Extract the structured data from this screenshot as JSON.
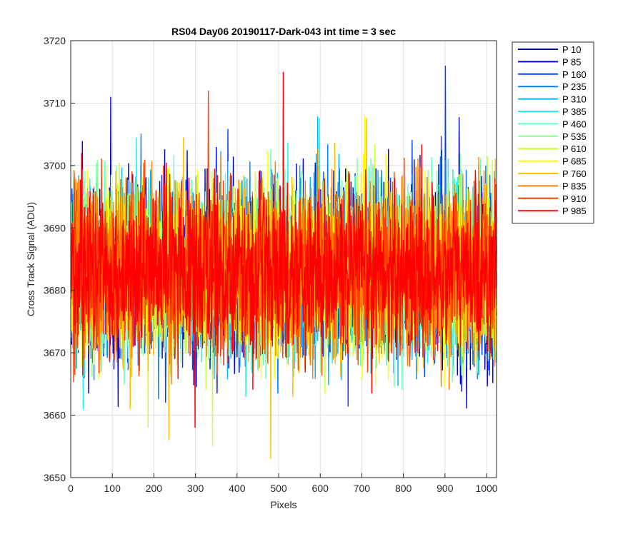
{
  "chart_data": {
    "type": "line",
    "title": "RS04 Day06 20190117-Dark-043 int time = 3 sec",
    "xlabel": "Pixels",
    "ylabel": "Cross Track Signal (ADU)",
    "xlim": [
      0,
      1024
    ],
    "ylim": [
      3650,
      3720
    ],
    "xticks": [
      0,
      100,
      200,
      300,
      400,
      500,
      600,
      700,
      800,
      900,
      1000
    ],
    "yticks": [
      3650,
      3660,
      3670,
      3680,
      3690,
      3700,
      3710,
      3720
    ],
    "grid": true,
    "legend_position": "outside-top-right",
    "noise_mean": 3683,
    "noise_sigma": 6.5,
    "series": [
      {
        "name": "P 10",
        "color": "#0000aa"
      },
      {
        "name": "P 85",
        "color": "#0000ee"
      },
      {
        "name": "P 160",
        "color": "#0040ff"
      },
      {
        "name": "P 235",
        "color": "#0080ff"
      },
      {
        "name": "P 310",
        "color": "#00b8ff"
      },
      {
        "name": "P 385",
        "color": "#20f0f0"
      },
      {
        "name": "P 460",
        "color": "#60ffc0"
      },
      {
        "name": "P 535",
        "color": "#90ff90"
      },
      {
        "name": "P 610",
        "color": "#c8ff38"
      },
      {
        "name": "P 685",
        "color": "#ffff00"
      },
      {
        "name": "P 760",
        "color": "#ffc000"
      },
      {
        "name": "P 835",
        "color": "#ff8000"
      },
      {
        "name": "P 910",
        "color": "#ff4000"
      },
      {
        "name": "P 985",
        "color": "#ff0000"
      }
    ],
    "annotated_extremes": [
      {
        "series": "P 85",
        "x": 95,
        "y": 3711
      },
      {
        "series": "P 160",
        "x": 900,
        "y": 3716
      },
      {
        "series": "P 985",
        "x": 510,
        "y": 3715
      },
      {
        "series": "P 910",
        "x": 330,
        "y": 3712
      },
      {
        "series": "P 760",
        "x": 480,
        "y": 3653
      },
      {
        "series": "P 610",
        "x": 340,
        "y": 3655
      },
      {
        "series": "P 760",
        "x": 235,
        "y": 3656
      }
    ]
  }
}
